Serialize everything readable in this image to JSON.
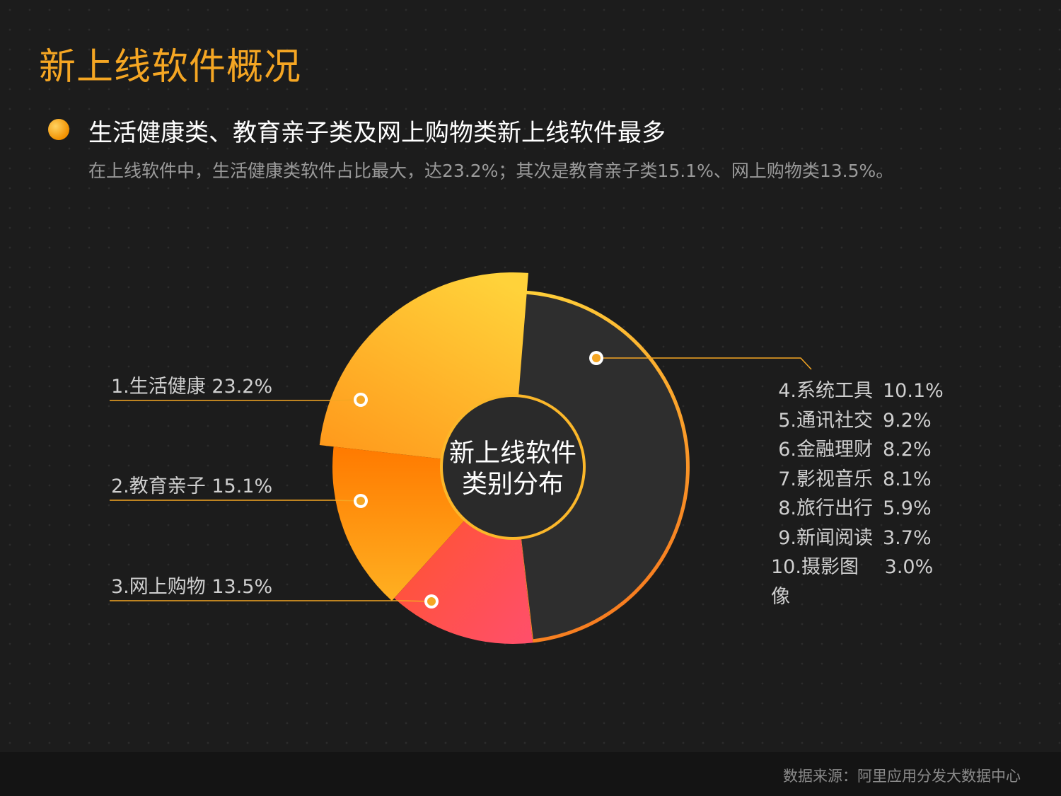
{
  "title": "新上线软件概况",
  "subtitle": "生活健康类、教育亲子类及网上购物类新上线软件最多",
  "description": "在上线软件中，生活健康类软件占比最大，达23.2%；其次是教育亲子类15.1%、网上购物类13.5%。",
  "source": "数据来源：阿里应用分发大数据中心",
  "colors": {
    "background": "#1c1c1c",
    "title": "#f5a623",
    "text": "#ffffff",
    "muted": "#9a9a9a",
    "rest_segment": "#2e2e2e",
    "ring_gradient": [
      "#ffd23a",
      "#f77d20"
    ],
    "slice_gradients": [
      [
        "#ffd23a",
        "#ff9a1c"
      ],
      [
        "#ff7a00",
        "#ffb021"
      ],
      [
        "#ff5424",
        "#ff4f6b"
      ]
    ]
  },
  "chart_data": {
    "type": "pie",
    "center_label": [
      "新上线软件",
      "类别分布"
    ],
    "slices": [
      {
        "label": "1.生活健康",
        "name": "生活健康",
        "value": 23.2,
        "value_text": "23.2%"
      },
      {
        "label": "2.教育亲子",
        "name": "教育亲子",
        "value": 15.1,
        "value_text": "15.1%"
      },
      {
        "label": "3.网上购物",
        "name": "网上购物",
        "value": 13.5,
        "value_text": "13.5%"
      }
    ],
    "rest_group": [
      {
        "label": "4.系统工具",
        "name": "系统工具",
        "value": 10.1,
        "value_text": "10.1%"
      },
      {
        "label": "5.通讯社交",
        "name": "通讯社交",
        "value": 9.2,
        "value_text": "9.2%"
      },
      {
        "label": "6.金融理财",
        "name": "金融理财",
        "value": 8.2,
        "value_text": "8.2%"
      },
      {
        "label": "7.影视音乐",
        "name": "影视音乐",
        "value": 8.1,
        "value_text": "8.1%"
      },
      {
        "label": "8.旅行出行",
        "name": "旅行出行",
        "value": 5.9,
        "value_text": "5.9%"
      },
      {
        "label": "9.新闻阅读",
        "name": "新闻阅读",
        "value": 3.7,
        "value_text": "3.7%"
      },
      {
        "label": "10.摄影图像",
        "name": "摄影图像",
        "value": 3.0,
        "value_text": "3.0%"
      }
    ]
  }
}
